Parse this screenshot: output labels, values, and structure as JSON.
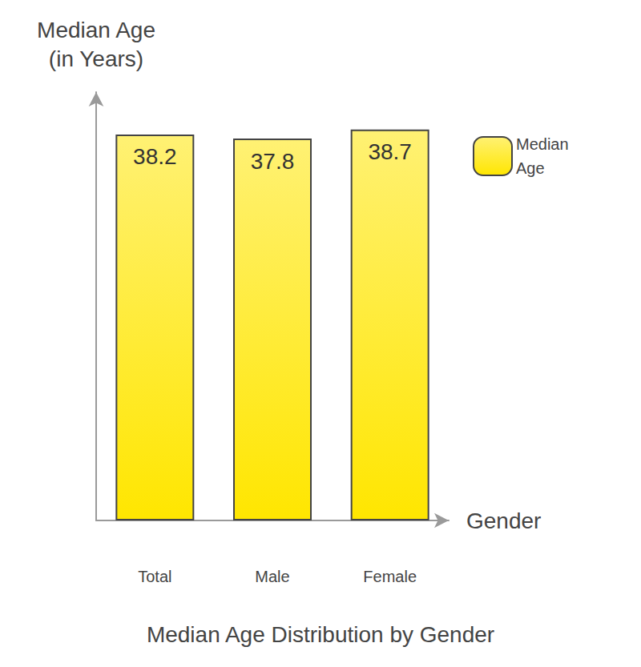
{
  "chart_data": {
    "type": "bar",
    "title": "Median Age Distribution by Gender",
    "x_label": "Gender",
    "y_label": "Median Age\n(in Years)",
    "categories": [
      "Total",
      "Male",
      "Female"
    ],
    "series": [
      {
        "name": "Median Age",
        "color": "#ffe600",
        "values": [
          38.2,
          37.8,
          38.7
        ]
      }
    ],
    "ylim": [
      0,
      42.4
    ],
    "grid": false,
    "legend": "right",
    "data_labels": true,
    "tick_labels": "x"
  }
}
